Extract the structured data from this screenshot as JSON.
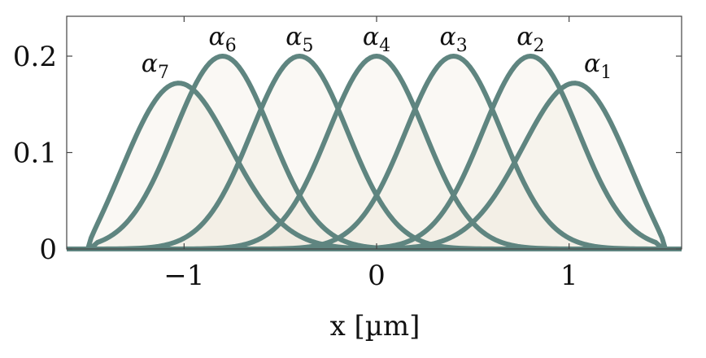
{
  "chart_data": {
    "type": "area",
    "xlabel": "x [µm]",
    "ylabel": "",
    "xlim": [
      -1.5,
      1.5
    ],
    "ylim": [
      0,
      0.2
    ],
    "xticks": [
      -1,
      0,
      1
    ],
    "xtick_labels": [
      "−1",
      "0",
      "1"
    ],
    "yticks": [
      0,
      0.1,
      0.2
    ],
    "ytick_labels": [
      "0",
      "0.1",
      "0.2"
    ],
    "grid": false,
    "line_color": "#5f8580",
    "fill_color": "#ede6d8",
    "series": [
      {
        "name": "α7",
        "label_base": "α",
        "label_sub": "7",
        "peak_x": -1.15,
        "peak_y": 0.172
      },
      {
        "name": "α6",
        "label_base": "α",
        "label_sub": "6",
        "peak_x": -0.8,
        "peak_y": 0.2
      },
      {
        "name": "α5",
        "label_base": "α",
        "label_sub": "5",
        "peak_x": -0.4,
        "peak_y": 0.2
      },
      {
        "name": "α4",
        "label_base": "α",
        "label_sub": "4",
        "peak_x": 0.0,
        "peak_y": 0.2
      },
      {
        "name": "α3",
        "label_base": "α",
        "label_sub": "3",
        "peak_x": 0.4,
        "peak_y": 0.2
      },
      {
        "name": "α2",
        "label_base": "α",
        "label_sub": "2",
        "peak_x": 0.8,
        "peak_y": 0.2
      },
      {
        "name": "α1",
        "label_base": "α",
        "label_sub": "1",
        "peak_x": 1.15,
        "peak_y": 0.172
      }
    ]
  }
}
